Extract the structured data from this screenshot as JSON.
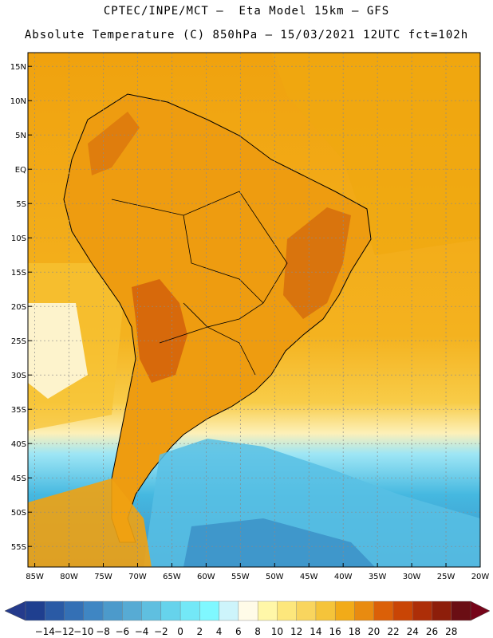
{
  "header": {
    "line1": "CPTEC/INPE/MCT —  Eta Model 15km — GFS",
    "line2": "Absolute Temperature (C) 850hPa — 15/03/2021 12UTC fct=102h"
  },
  "map": {
    "lat_labels": [
      "15N",
      "10N",
      "5N",
      "EQ",
      "5S",
      "10S",
      "15S",
      "20S",
      "25S",
      "30S",
      "35S",
      "40S",
      "45S",
      "50S",
      "55S"
    ],
    "lon_labels": [
      "85W",
      "80W",
      "75W",
      "70W",
      "65W",
      "60W",
      "55W",
      "50W",
      "45W",
      "40W",
      "35W",
      "30W",
      "25W",
      "20W"
    ],
    "lat_range": [
      -58,
      17
    ],
    "lon_range": [
      -86,
      -20
    ],
    "gridlines": true
  },
  "colorbar": {
    "labels": [
      "-14",
      "-12",
      "-10",
      "-8",
      "-6",
      "-4",
      "-2",
      "0",
      "2",
      "4",
      "6",
      "8",
      "10",
      "12",
      "14",
      "16",
      "18",
      "20",
      "22",
      "24",
      "26",
      "28"
    ],
    "colors": [
      "#1f3f8f",
      "#2a5aa5",
      "#3470b5",
      "#3f86c3",
      "#4c9acb",
      "#57abd4",
      "#5fbfe0",
      "#66d3ec",
      "#73e8f7",
      "#7ff8ff",
      "#cdf4fb",
      "#fffbe8",
      "#fff7a8",
      "#fde77c",
      "#f9d55e",
      "#f5c43a",
      "#f2ab18",
      "#e98b10",
      "#db6008",
      "#c94505",
      "#ad2e08",
      "#8d1e0a",
      "#6a0e14"
    ],
    "low_color": "#253b8c",
    "high_color": "#76051a"
  }
}
